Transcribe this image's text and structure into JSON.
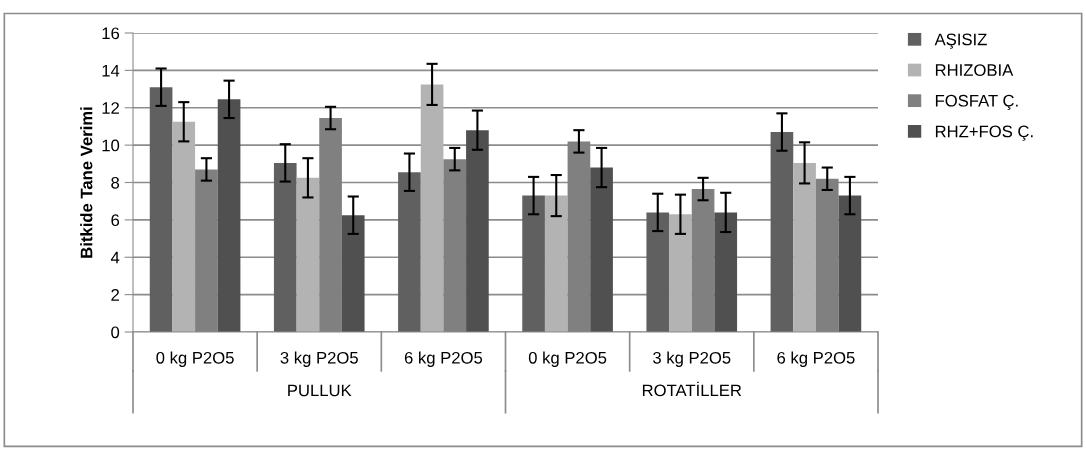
{
  "chart_data": {
    "type": "bar",
    "ylabel": "Bitkide Tane Verimi",
    "categories": [
      "0 kg P2O5",
      "3 kg P2O5",
      "6 kg P2O5",
      "0 kg P2O5",
      "3 kg P2O5",
      "6 kg P2O5"
    ],
    "series": [
      {
        "name": "AŞISIZ",
        "color": "#606060",
        "values": [
          13.1,
          9.05,
          8.55,
          7.3,
          6.4,
          10.7
        ],
        "errors": [
          1.0,
          1.0,
          1.0,
          1.0,
          1.0,
          1.0
        ]
      },
      {
        "name": "RHIZOBIA",
        "color": "#b3b3b3",
        "values": [
          11.25,
          8.25,
          13.25,
          7.3,
          6.3,
          9.05
        ],
        "errors": [
          1.05,
          1.05,
          1.1,
          1.1,
          1.05,
          1.1
        ]
      },
      {
        "name": "FOSFAT Ç.",
        "color": "#808080",
        "values": [
          8.7,
          11.45,
          9.25,
          10.2,
          7.65,
          8.2
        ],
        "errors": [
          0.6,
          0.6,
          0.6,
          0.6,
          0.6,
          0.6
        ]
      },
      {
        "name": "RHZ+FOS Ç.",
        "color": "#505050",
        "values": [
          12.45,
          6.25,
          10.8,
          8.8,
          6.4,
          7.3
        ],
        "errors": [
          1.0,
          1.0,
          1.05,
          1.05,
          1.05,
          1.0
        ]
      }
    ],
    "annotations": [
      "PULLUK",
      "ROTATİLLER"
    ],
    "ylim": [
      0,
      16
    ],
    "yticks": [
      0,
      2,
      4,
      6,
      8,
      10,
      12,
      14,
      16
    ],
    "grid": "y",
    "legend": "right"
  }
}
